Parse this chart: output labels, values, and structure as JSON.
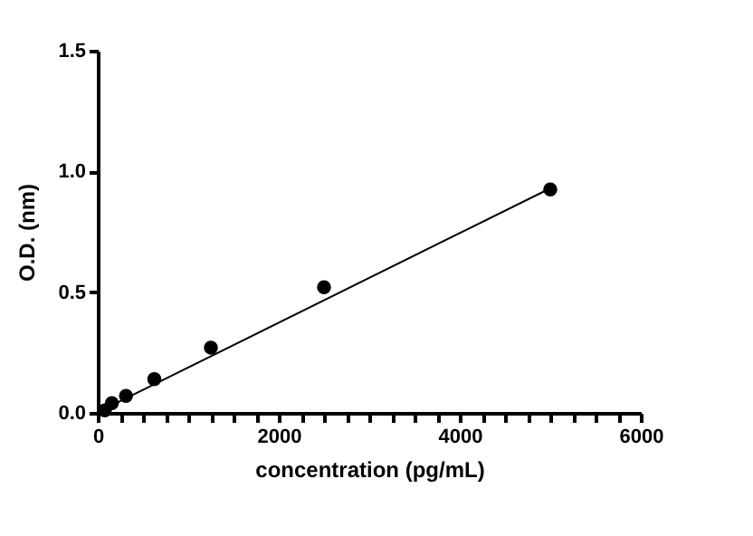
{
  "chart_data": {
    "type": "scatter",
    "xlabel": "concentration (pg/mL)",
    "ylabel": "O.D. (nm)",
    "xlim": [
      0,
      6000
    ],
    "ylim": [
      0,
      1.5
    ],
    "xticks": [
      0,
      {
        "value": 250,
        "label": null
      },
      {
        "value": 500,
        "label": null
      },
      {
        "value": 750,
        "label": null
      },
      {
        "value": 1000,
        "label": null
      },
      {
        "value": 1250,
        "label": null
      },
      {
        "value": 1500,
        "label": null
      },
      {
        "value": 1750,
        "label": null
      },
      2000,
      {
        "value": 2250,
        "label": null
      },
      {
        "value": 2500,
        "label": null
      },
      {
        "value": 2750,
        "label": null
      },
      {
        "value": 3000,
        "label": null
      },
      {
        "value": 3250,
        "label": null
      },
      {
        "value": 3500,
        "label": null
      },
      {
        "value": 3750,
        "label": null
      },
      4000,
      {
        "value": 4250,
        "label": null
      },
      {
        "value": 4500,
        "label": null
      },
      {
        "value": 4750,
        "label": null
      },
      {
        "value": 5000,
        "label": null
      },
      {
        "value": 5250,
        "label": null
      },
      {
        "value": 5500,
        "label": null
      },
      {
        "value": 5750,
        "label": null
      },
      6000
    ],
    "yticks": [
      {
        "value": 0,
        "label": "0.0"
      },
      {
        "value": 0.5,
        "label": "0.5"
      },
      {
        "value": 1,
        "label": "1.0"
      },
      {
        "value": 1.5,
        "label": "1.5"
      }
    ],
    "grid": false,
    "series": [
      {
        "color": "#000000",
        "marker": "circle",
        "x": [
          78,
          156,
          312,
          625,
          1250,
          2500,
          5000
        ],
        "values": [
          0.01,
          0.04,
          0.07,
          0.14,
          0.27,
          0.52,
          0.925
        ]
      },
      {
        "type": "line",
        "color": "#000000",
        "x": [
          39,
          5000
        ],
        "values": [
          0.01,
          0.93
        ]
      }
    ]
  }
}
